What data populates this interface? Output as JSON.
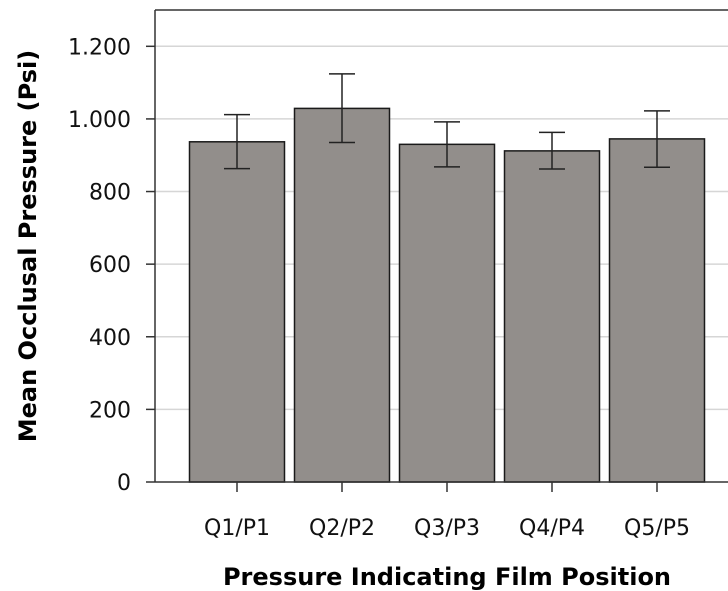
{
  "chart_data": {
    "type": "bar",
    "title": "",
    "xlabel": "Pressure Indicating Film Position",
    "ylabel": "Mean Occlusal Pressure (Psi)",
    "categories": [
      "Q1/P1",
      "Q2/P2",
      "Q3/P3",
      "Q4/P4",
      "Q5/P5"
    ],
    "values": [
      937,
      1029,
      930,
      912,
      945
    ],
    "error_low": [
      863,
      935,
      868,
      862,
      867
    ],
    "error_high": [
      1012,
      1124,
      992,
      963,
      1022
    ],
    "ylim": [
      0,
      1300
    ],
    "yticks": [
      0,
      200,
      400,
      600,
      800,
      1000,
      1200
    ],
    "ytick_labels": [
      "0",
      "200",
      "400",
      "600",
      "800",
      "1.000",
      "1.200"
    ],
    "grid": "horizontal",
    "colors": {
      "bar_fill": "#928e8b",
      "bar_stroke": "#1a1a1a",
      "grid": "#d6d6d6",
      "axis": "#333333"
    }
  }
}
